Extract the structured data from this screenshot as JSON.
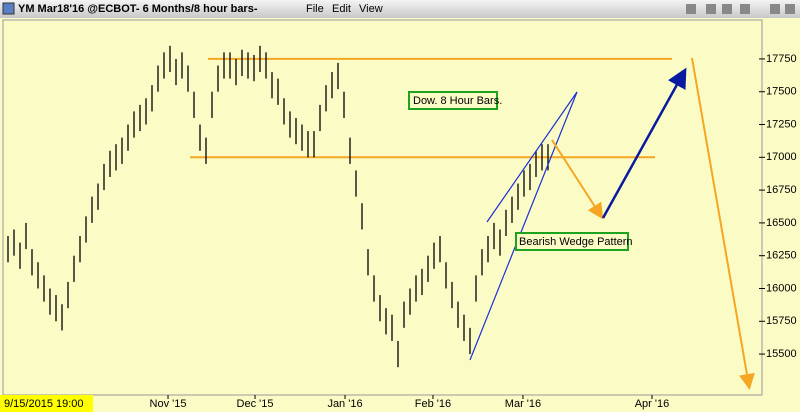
{
  "toolbar": {
    "title": "YM Mar18'16 @ECBOT-  6 Months/8 hour bars-",
    "menu": [
      "File",
      "Edit",
      "View"
    ]
  },
  "chart_data": {
    "type": "ohlc",
    "color": "#000000",
    "high": [
      16400,
      16450,
      16350,
      16500,
      16300,
      16200,
      16100,
      16000,
      15950,
      15880,
      16050,
      16250,
      16400,
      16550,
      16700,
      16800,
      16950,
      17050,
      17100,
      17150,
      17250,
      17350,
      17400,
      17450,
      17550,
      17700,
      17800,
      17850,
      17750,
      17800,
      17700,
      17500,
      17250,
      17150,
      17500,
      17700,
      17800,
      17800,
      17750,
      17820,
      17800,
      17780,
      17850,
      17800,
      17650,
      17600,
      17450,
      17350,
      17300,
      17250,
      17200,
      17200,
      17400,
      17550,
      17650,
      17720,
      17500,
      17150,
      16900,
      16650,
      16300,
      16100,
      15950,
      15850,
      15800,
      15600,
      15900,
      16000,
      16100,
      16150,
      16250,
      16350,
      16400,
      16200,
      16050,
      15900,
      15800,
      15700,
      16100,
      16300,
      16400,
      16500,
      16450,
      16600,
      16700,
      16800,
      16900,
      16950,
      17050,
      17100,
      17100
    ],
    "low": [
      16200,
      16250,
      16150,
      16300,
      16100,
      16000,
      15900,
      15800,
      15750,
      15680,
      15850,
      16050,
      16200,
      16350,
      16500,
      16600,
      16750,
      16850,
      16900,
      16950,
      17050,
      17150,
      17200,
      17250,
      17350,
      17500,
      17600,
      17650,
      17550,
      17600,
      17500,
      17300,
      17050,
      16950,
      17300,
      17500,
      17600,
      17600,
      17550,
      17620,
      17600,
      17580,
      17650,
      17600,
      17450,
      17400,
      17250,
      17150,
      17100,
      17050,
      17000,
      17000,
      17200,
      17350,
      17450,
      17520,
      17300,
      16950,
      16700,
      16450,
      16100,
      15900,
      15750,
      15650,
      15600,
      15400,
      15700,
      15800,
      15900,
      15950,
      16050,
      16150,
      16200,
      16000,
      15850,
      15700,
      15600,
      15500,
      15900,
      16100,
      16200,
      16300,
      16250,
      16400,
      16500,
      16600,
      16700,
      16750,
      16850,
      16900,
      16900
    ],
    "xlim": [
      -0.5,
      125.5
    ],
    "xticks": [
      {
        "value": 26.67,
        "label": "Nov '15"
      },
      {
        "value": 41.17,
        "label": "Dec '15"
      },
      {
        "value": 56.17,
        "label": "Jan '16"
      },
      {
        "value": 70.83,
        "label": "Feb '16"
      },
      {
        "value": 85.83,
        "label": "Mar '16"
      },
      {
        "value": 107.33,
        "label": "Apr '16"
      }
    ],
    "x_cursor_label": "9/15/2015 19:00",
    "ylim": [
      15188,
      18062
    ],
    "yticks": [
      15500,
      15750,
      16000,
      16250,
      16500,
      16750,
      17000,
      17250,
      17500,
      17750
    ],
    "levels": [
      17750,
      17000
    ],
    "level_color": "#f5a623",
    "annotations": [
      "Dow. 8 Hour Bars.",
      "Bearish Wedge  Pattern"
    ]
  }
}
